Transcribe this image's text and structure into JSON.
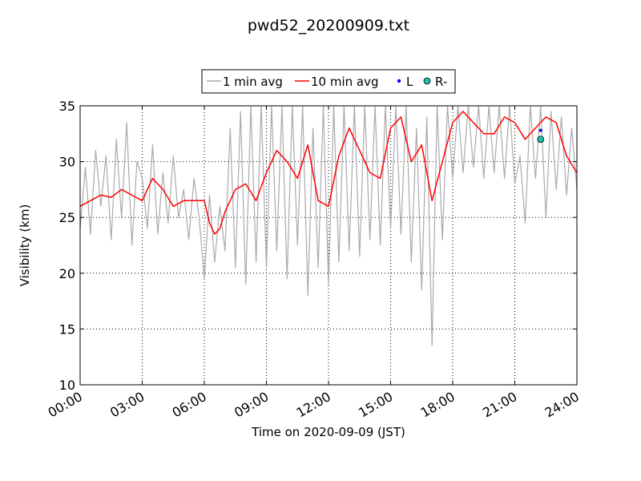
{
  "chart_data": {
    "type": "line",
    "title": "pwd52_20200909.txt",
    "xlabel": "Time on 2020-09-09 (JST)",
    "ylabel": "Visibility (km)",
    "xlim": [
      "00:00",
      "24:00"
    ],
    "ylim": [
      10,
      35
    ],
    "x_ticks": [
      "00:00",
      "03:00",
      "06:00",
      "09:00",
      "12:00",
      "15:00",
      "18:00",
      "21:00",
      "24:00"
    ],
    "y_ticks": [
      "10",
      "15",
      "20",
      "25",
      "30",
      "35"
    ],
    "grid": true,
    "legend_location": "top-center",
    "legend": [
      {
        "label": "1 min avg",
        "marker": "line",
        "color": "#aaaaaa"
      },
      {
        "label": "10 min avg",
        "marker": "line",
        "color": "#ff0000"
      },
      {
        "label": "L",
        "marker": "dot",
        "color": "#0000ff"
      },
      {
        "label": "R-",
        "marker": "circle",
        "color": "#20c0b0"
      }
    ],
    "series": [
      {
        "name": "10 min avg",
        "color": "#ff0000",
        "x": [
          "00:00",
          "00:30",
          "01:00",
          "01:30",
          "02:00",
          "02:30",
          "03:00",
          "03:30",
          "04:00",
          "04:30",
          "05:00",
          "05:30",
          "06:00",
          "06:15",
          "06:30",
          "06:45",
          "07:00",
          "07:30",
          "08:00",
          "08:30",
          "09:00",
          "09:30",
          "10:00",
          "10:30",
          "11:00",
          "11:30",
          "12:00",
          "12:30",
          "13:00",
          "13:30",
          "14:00",
          "14:30",
          "15:00",
          "15:30",
          "16:00",
          "16:30",
          "17:00",
          "17:30",
          "18:00",
          "18:30",
          "19:00",
          "19:30",
          "20:00",
          "20:30",
          "21:00",
          "21:30",
          "22:00",
          "22:30",
          "23:00",
          "23:30",
          "24:00"
        ],
        "y": [
          26.0,
          26.5,
          27.0,
          26.8,
          27.5,
          27.0,
          26.5,
          28.5,
          27.5,
          26.0,
          26.5,
          26.5,
          26.5,
          24.5,
          23.5,
          24.0,
          25.5,
          27.5,
          28.0,
          26.5,
          29.0,
          31.0,
          30.0,
          28.5,
          31.5,
          26.5,
          26.0,
          30.5,
          33.0,
          31.0,
          29.0,
          28.5,
          33.0,
          34.0,
          30.0,
          31.5,
          26.5,
          30.0,
          33.5,
          34.5,
          33.5,
          32.5,
          32.5,
          34.0,
          33.5,
          32.0,
          33.0,
          34.0,
          33.5,
          30.5,
          29.0
        ]
      },
      {
        "name": "1 min avg",
        "color": "#aaaaaa",
        "x": [
          "00:00",
          "00:15",
          "00:30",
          "00:45",
          "01:00",
          "01:15",
          "01:30",
          "01:45",
          "02:00",
          "02:15",
          "02:30",
          "02:45",
          "03:00",
          "03:15",
          "03:30",
          "03:45",
          "04:00",
          "04:15",
          "04:30",
          "04:45",
          "05:00",
          "05:15",
          "05:30",
          "05:45",
          "06:00",
          "06:15",
          "06:30",
          "06:45",
          "07:00",
          "07:15",
          "07:30",
          "07:45",
          "08:00",
          "08:15",
          "08:30",
          "08:45",
          "09:00",
          "09:15",
          "09:30",
          "09:45",
          "10:00",
          "10:15",
          "10:30",
          "10:45",
          "11:00",
          "11:15",
          "11:30",
          "11:45",
          "12:00",
          "12:15",
          "12:30",
          "12:45",
          "13:00",
          "13:15",
          "13:30",
          "13:45",
          "14:00",
          "14:15",
          "14:30",
          "14:45",
          "15:00",
          "15:15",
          "15:30",
          "15:45",
          "16:00",
          "16:15",
          "16:30",
          "16:45",
          "17:00",
          "17:15",
          "17:30",
          "17:45",
          "18:00",
          "18:15",
          "18:30",
          "18:45",
          "19:00",
          "19:15",
          "19:30",
          "19:45",
          "20:00",
          "20:15",
          "20:30",
          "20:45",
          "21:00",
          "21:15",
          "21:30",
          "21:45",
          "22:00",
          "22:15",
          "22:30",
          "22:45",
          "23:00",
          "23:15",
          "23:30",
          "23:45",
          "24:00"
        ],
        "y": [
          24.0,
          29.5,
          23.5,
          31.0,
          26.0,
          30.5,
          23.0,
          32.0,
          25.0,
          33.5,
          22.5,
          30.0,
          28.5,
          24.0,
          31.5,
          23.5,
          29.0,
          24.5,
          30.5,
          25.0,
          27.5,
          23.0,
          28.5,
          25.0,
          19.5,
          27.0,
          21.0,
          26.0,
          22.0,
          33.0,
          20.5,
          34.5,
          19.0,
          35.0,
          21.0,
          35.0,
          20.5,
          35.0,
          22.0,
          35.0,
          19.5,
          35.0,
          22.5,
          35.0,
          18.0,
          33.0,
          20.5,
          35.0,
          19.0,
          35.0,
          21.0,
          35.0,
          22.0,
          35.0,
          21.5,
          35.0,
          23.0,
          35.0,
          22.5,
          35.0,
          24.0,
          35.0,
          23.5,
          35.0,
          21.0,
          33.0,
          18.5,
          34.0,
          13.5,
          35.0,
          23.0,
          35.0,
          28.5,
          35.0,
          29.0,
          35.0,
          29.5,
          35.0,
          28.5,
          35.0,
          29.0,
          35.0,
          28.5,
          35.0,
          28.0,
          30.5,
          24.5,
          35.0,
          28.5,
          35.0,
          25.0,
          34.5,
          27.5,
          34.0,
          27.0,
          33.0,
          27.5
        ]
      }
    ],
    "points": [
      {
        "name": "L",
        "x": "22:15",
        "y": 32.8,
        "color": "#0000ff",
        "marker": "dot"
      },
      {
        "name": "R-",
        "x": "22:15",
        "y": 32.0,
        "color": "#20c0b0",
        "marker": "circle"
      }
    ]
  }
}
